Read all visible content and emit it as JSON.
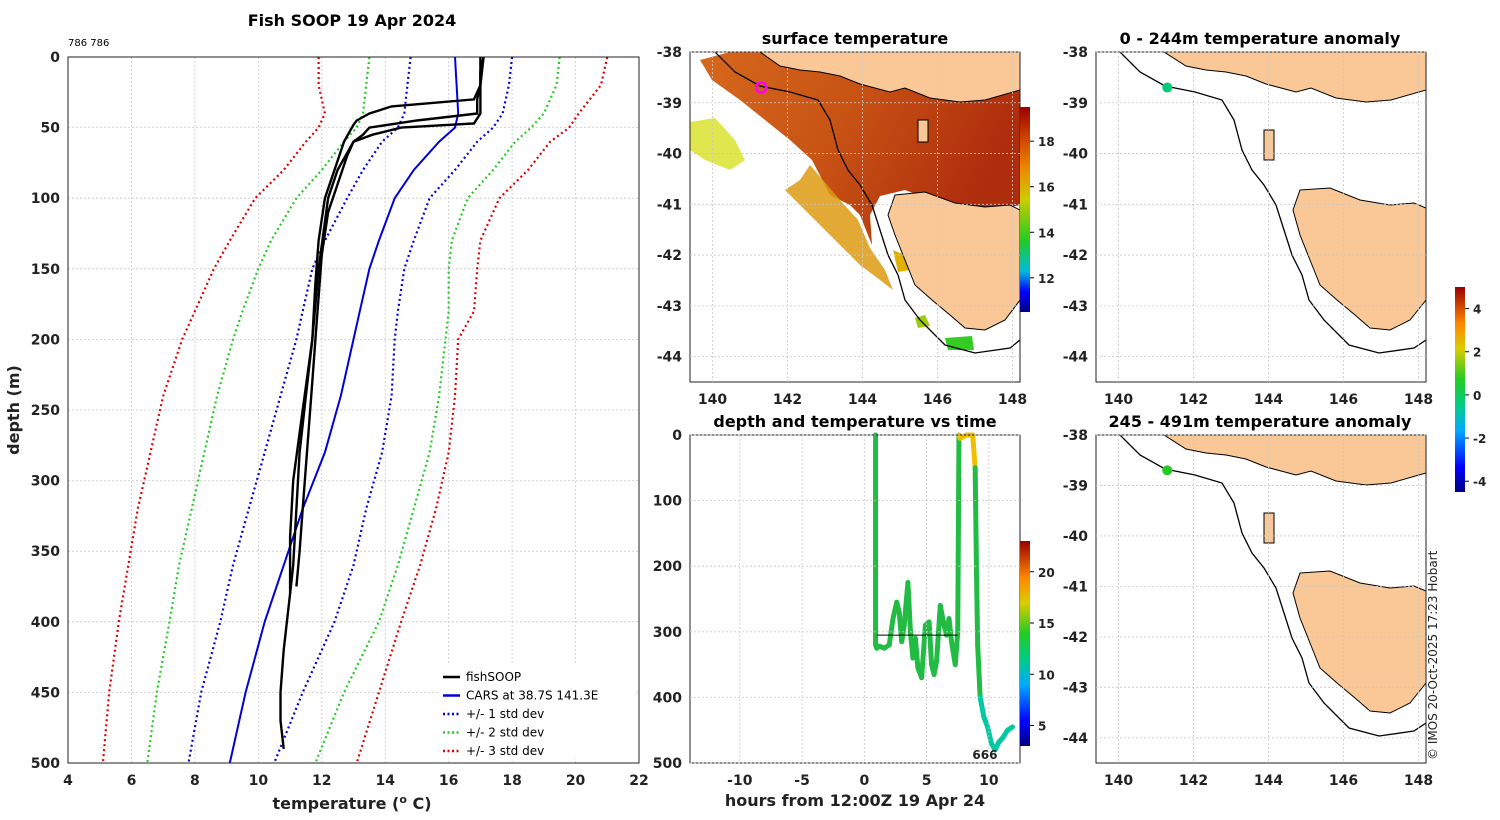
{
  "chart_data": [
    {
      "type": "line",
      "id": "profile",
      "title": "Fish SOOP 19 Apr 2024",
      "corner_label": "786 786",
      "xlabel": "temperature (",
      "xlabel_sup": "o",
      "xlabel_end": " C)",
      "ylabel": "depth (m)",
      "xlim": [
        4,
        22
      ],
      "ylim": [
        0,
        500
      ],
      "xticks": [
        4,
        6,
        8,
        10,
        12,
        14,
        16,
        18,
        20,
        22
      ],
      "yticks": [
        0,
        50,
        100,
        150,
        200,
        250,
        300,
        350,
        400,
        450,
        500
      ],
      "legend": [
        {
          "label": "fishSOOP",
          "color": "#000000",
          "style": "solid"
        },
        {
          "label": "CARS at 38.7S 141.3E",
          "color": "#0000dd",
          "style": "solid"
        },
        {
          "label": "+/- 1 std dev",
          "color": "#0000dd",
          "style": "dotted"
        },
        {
          "label": "+/- 2 std dev",
          "color": "#22cc22",
          "style": "dotted"
        },
        {
          "label": "+/- 3 std dev",
          "color": "#dd0000",
          "style": "dotted"
        }
      ],
      "climatology": {
        "depth": [
          0,
          20,
          40,
          50,
          60,
          80,
          100,
          130,
          150,
          180,
          200,
          240,
          280,
          320,
          360,
          400,
          450,
          500
        ],
        "mean": [
          16.2,
          16.25,
          16.3,
          16.2,
          15.7,
          14.9,
          14.3,
          13.8,
          13.5,
          13.2,
          13.0,
          12.6,
          12.1,
          11.4,
          10.8,
          10.2,
          9.6,
          9.1
        ]
      },
      "std_bands": [
        {
          "name": "+/- 1 std dev",
          "color": "#0000dd",
          "left": [
            14.8,
            14.7,
            14.6,
            14.4,
            13.9,
            13.3,
            12.8,
            12.1,
            11.7,
            11.4,
            11.2,
            10.7,
            10.2,
            9.7,
            9.2,
            8.8,
            8.2,
            7.8
          ],
          "right": [
            18.0,
            17.9,
            17.7,
            17.4,
            16.9,
            16.2,
            15.4,
            14.9,
            14.6,
            14.4,
            14.3,
            14.2,
            13.9,
            13.4,
            13.0,
            12.4,
            11.4,
            10.5
          ]
        },
        {
          "name": "+/- 2 std dev",
          "color": "#22cc22",
          "left": [
            13.5,
            13.4,
            13.3,
            13.1,
            12.7,
            12.0,
            11.2,
            10.4,
            10.0,
            9.5,
            9.2,
            8.7,
            8.3,
            7.9,
            7.5,
            7.2,
            6.8,
            6.5
          ],
          "right": [
            19.5,
            19.4,
            19.0,
            18.6,
            18.1,
            17.4,
            16.6,
            16.1,
            16.0,
            16.0,
            15.9,
            15.7,
            15.4,
            14.9,
            14.4,
            13.8,
            12.7,
            11.8
          ]
        },
        {
          "name": "+/- 3 std dev",
          "color": "#dd0000",
          "left": [
            11.9,
            11.9,
            12.1,
            11.9,
            11.5,
            10.8,
            9.9,
            9.1,
            8.6,
            8.0,
            7.6,
            7.0,
            6.6,
            6.2,
            5.9,
            5.6,
            5.3,
            5.1
          ],
          "right": [
            21.0,
            20.8,
            20.1,
            19.8,
            19.2,
            18.5,
            17.6,
            17.0,
            16.9,
            16.8,
            16.3,
            16.2,
            16.0,
            15.6,
            15.1,
            14.5,
            13.8,
            13.1
          ]
        }
      ],
      "fishsoop_series": [
        {
          "depth": [
            0,
            10,
            20,
            30,
            40,
            45,
            50,
            55,
            60,
            70,
            90,
            110,
            140,
            170,
            200,
            230,
            260,
            290,
            320,
            350,
            375
          ],
          "temp": [
            17.0,
            17.0,
            17.0,
            16.9,
            16.9,
            15.0,
            13.5,
            13.3,
            13.0,
            12.8,
            12.5,
            12.2,
            12.0,
            11.9,
            11.8,
            11.7,
            11.6,
            11.5,
            11.4,
            11.3,
            11.2
          ]
        },
        {
          "depth": [
            0,
            10,
            20,
            30,
            35,
            40,
            45,
            48,
            52,
            60,
            80,
            100,
            130,
            160,
            200,
            240,
            280,
            320,
            360,
            380
          ],
          "temp": [
            17.1,
            17.0,
            17.0,
            16.8,
            14.2,
            13.5,
            13.1,
            13.0,
            12.9,
            12.7,
            12.4,
            12.1,
            11.9,
            11.8,
            11.7,
            11.5,
            11.3,
            11.2,
            11.1,
            11.0
          ]
        },
        {
          "depth": [
            0,
            20,
            40,
            47,
            50,
            55,
            60,
            80,
            100,
            150,
            200,
            250,
            300,
            340,
            380,
            420,
            450,
            470,
            490
          ],
          "temp": [
            17.1,
            17.0,
            17.0,
            16.8,
            14.5,
            13.6,
            13.0,
            12.5,
            12.2,
            11.9,
            11.7,
            11.4,
            11.1,
            11.0,
            11.0,
            10.8,
            10.7,
            10.7,
            10.8
          ]
        }
      ]
    },
    {
      "type": "heatmap",
      "id": "surface_map",
      "title": "surface temperature",
      "xlim": [
        139.4,
        148.2
      ],
      "ylim": [
        -44.5,
        -38
      ],
      "xticks": [
        140,
        142,
        144,
        146,
        148
      ],
      "yticks": [
        -38,
        -39,
        -40,
        -41,
        -42,
        -43,
        -44
      ],
      "colorbar_ticks": [
        12,
        14,
        16,
        18
      ],
      "colorbar_range": [
        10.5,
        19.5
      ],
      "marker": {
        "lon": 141.3,
        "lat": -38.7,
        "color": "#ff00ff"
      }
    },
    {
      "type": "scatter",
      "id": "depth_time",
      "title": "depth and temperature vs time",
      "xlabel": "hours from 12:00Z 19 Apr 24",
      "xlim": [
        -14,
        12.5
      ],
      "ylim": [
        0,
        500
      ],
      "xticks": [
        -10,
        -5,
        0,
        5,
        10
      ],
      "yticks": [
        0,
        100,
        200,
        300,
        400,
        500
      ],
      "colorbar_ticks": [
        5,
        10,
        15,
        20
      ],
      "colorbar_range": [
        3,
        23
      ],
      "annotation": "666",
      "annotation_at": [
        9.8,
        488
      ],
      "hline": {
        "depth": 305,
        "from": 1.0,
        "to": 7.5
      },
      "track": {
        "time": [
          0.9,
          0.9,
          1.0,
          1.2,
          1.6,
          2.0,
          2.3,
          2.6,
          2.8,
          3.0,
          3.2,
          3.5,
          3.7,
          3.9,
          4.1,
          4.3,
          4.6,
          4.9,
          5.2,
          5.4,
          5.6,
          5.8,
          6.1,
          6.4,
          6.6,
          6.8,
          7.0,
          7.3,
          7.5,
          7.6,
          7.7,
          8.2,
          8.7,
          8.9,
          9.0,
          9.1,
          9.3,
          9.6,
          9.9,
          10.2,
          10.5,
          10.8,
          11.1,
          11.5,
          11.9
        ],
        "depth": [
          0,
          320,
          325,
          322,
          325,
          320,
          280,
          255,
          270,
          315,
          290,
          225,
          300,
          340,
          310,
          355,
          370,
          290,
          285,
          350,
          365,
          345,
          260,
          290,
          305,
          280,
          315,
          350,
          300,
          0,
          5,
          0,
          0,
          50,
          200,
          320,
          400,
          430,
          445,
          470,
          480,
          468,
          462,
          450,
          445
        ]
      }
    },
    {
      "type": "heatmap",
      "id": "anomaly_0_244",
      "title": "0 - 244m temperature anomaly",
      "xlim": [
        139.4,
        148.2
      ],
      "ylim": [
        -44.5,
        -38
      ],
      "xticks": [
        140,
        142,
        144,
        146,
        148
      ],
      "yticks": [
        -38,
        -39,
        -40,
        -41,
        -42,
        -43,
        -44
      ],
      "dot": {
        "lon": 141.3,
        "lat": -38.7,
        "color": "#00cc77"
      }
    },
    {
      "type": "heatmap",
      "id": "anomaly_245_491",
      "title": "245 - 491m temperature anomaly",
      "xlim": [
        139.4,
        148.2
      ],
      "ylim": [
        -44.5,
        -38
      ],
      "xticks": [
        140,
        142,
        144,
        146,
        148
      ],
      "yticks": [
        -38,
        -39,
        -40,
        -41,
        -42,
        -43,
        -44
      ],
      "dot": {
        "lon": 141.3,
        "lat": -38.7,
        "color": "#22cc22"
      },
      "colorbar_ticks": [
        4,
        2,
        0,
        -2,
        -4
      ],
      "colorbar_range": [
        -4.5,
        5
      ]
    }
  ],
  "credit": "© IMOS 20-Oct-2025 17:23 Hobart",
  "colors": {
    "land": "#f9c896",
    "frame": "#222222"
  }
}
